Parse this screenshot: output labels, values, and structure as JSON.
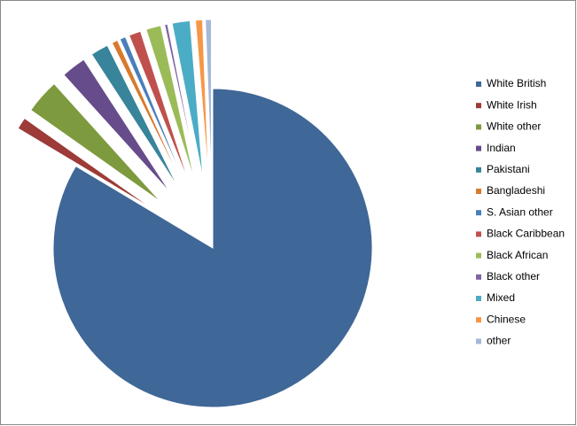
{
  "chart_data": {
    "type": "pie",
    "categories": [
      "White British",
      "White Irish",
      "White other",
      "Indian",
      "Pakistani",
      "Bangladeshi",
      "S. Asian other",
      "Black Caribbean",
      "Black African",
      "Black other",
      "Mixed",
      "Chinese",
      "other"
    ],
    "values": [
      83,
      1.2,
      3.5,
      2.5,
      1.8,
      0.6,
      0.6,
      1.2,
      1.5,
      0.3,
      1.8,
      0.7,
      0.6
    ],
    "colors": [
      "#3f6797",
      "#9c3b38",
      "#7e9a3f",
      "#664c8a",
      "#37849b",
      "#d87a2e",
      "#4a7ebb",
      "#c0504d",
      "#9bbb59",
      "#8064a2",
      "#4bacc6",
      "#f79646",
      "#a5b8d8"
    ],
    "legend": "right"
  }
}
